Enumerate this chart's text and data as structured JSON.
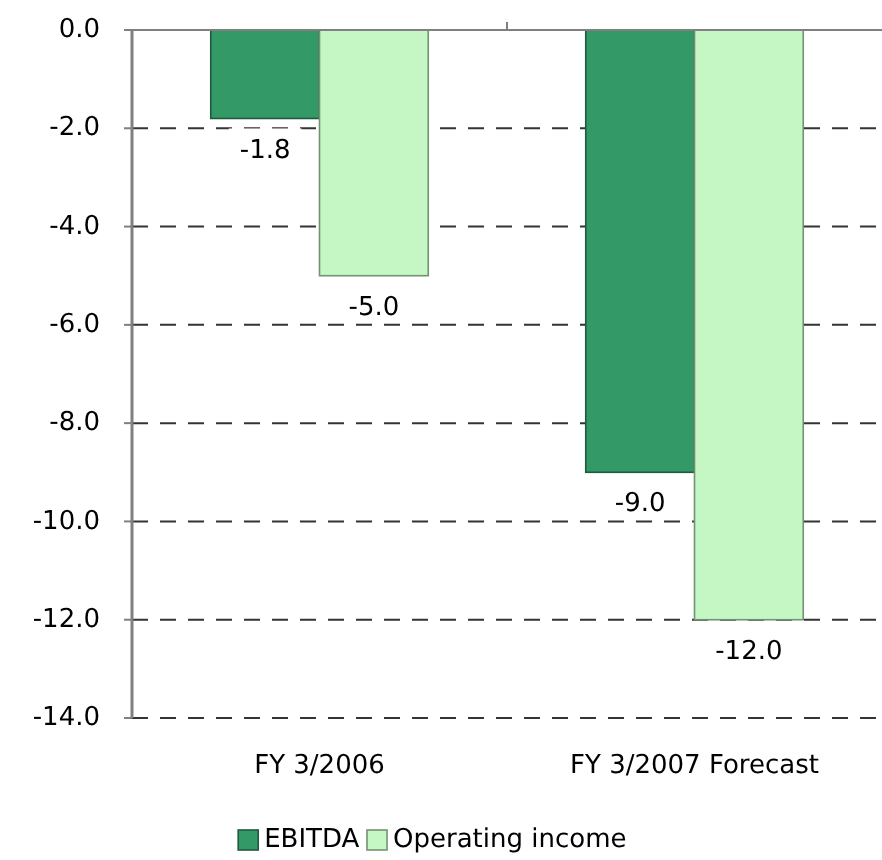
{
  "chart_data": {
    "type": "bar",
    "categories": [
      "FY 3/2006",
      "FY 3/2007 Forecast"
    ],
    "series": [
      {
        "name": "EBITDA",
        "color": "#339966",
        "values": [
          -1.8,
          -9.0
        ],
        "value_labels": [
          "-1.8",
          "-9.0"
        ]
      },
      {
        "name": "Operating income",
        "color": "#c4f7c4",
        "values": [
          -5.0,
          -12.0
        ],
        "value_labels": [
          "-5.0",
          "-12.0"
        ]
      }
    ],
    "ylim": [
      -14,
      0
    ],
    "yticks": [
      {
        "value": 0,
        "label": "0.0"
      },
      {
        "value": -2,
        "label": "-2.0"
      },
      {
        "value": -4,
        "label": "-4.0"
      },
      {
        "value": -6,
        "label": "-6.0"
      },
      {
        "value": -8,
        "label": "-8.0"
      },
      {
        "value": -10,
        "label": "-10.0"
      },
      {
        "value": -12,
        "label": "-12.0"
      },
      {
        "value": -14,
        "label": "-14.0"
      }
    ],
    "grid": "y",
    "legend": "bottom"
  }
}
